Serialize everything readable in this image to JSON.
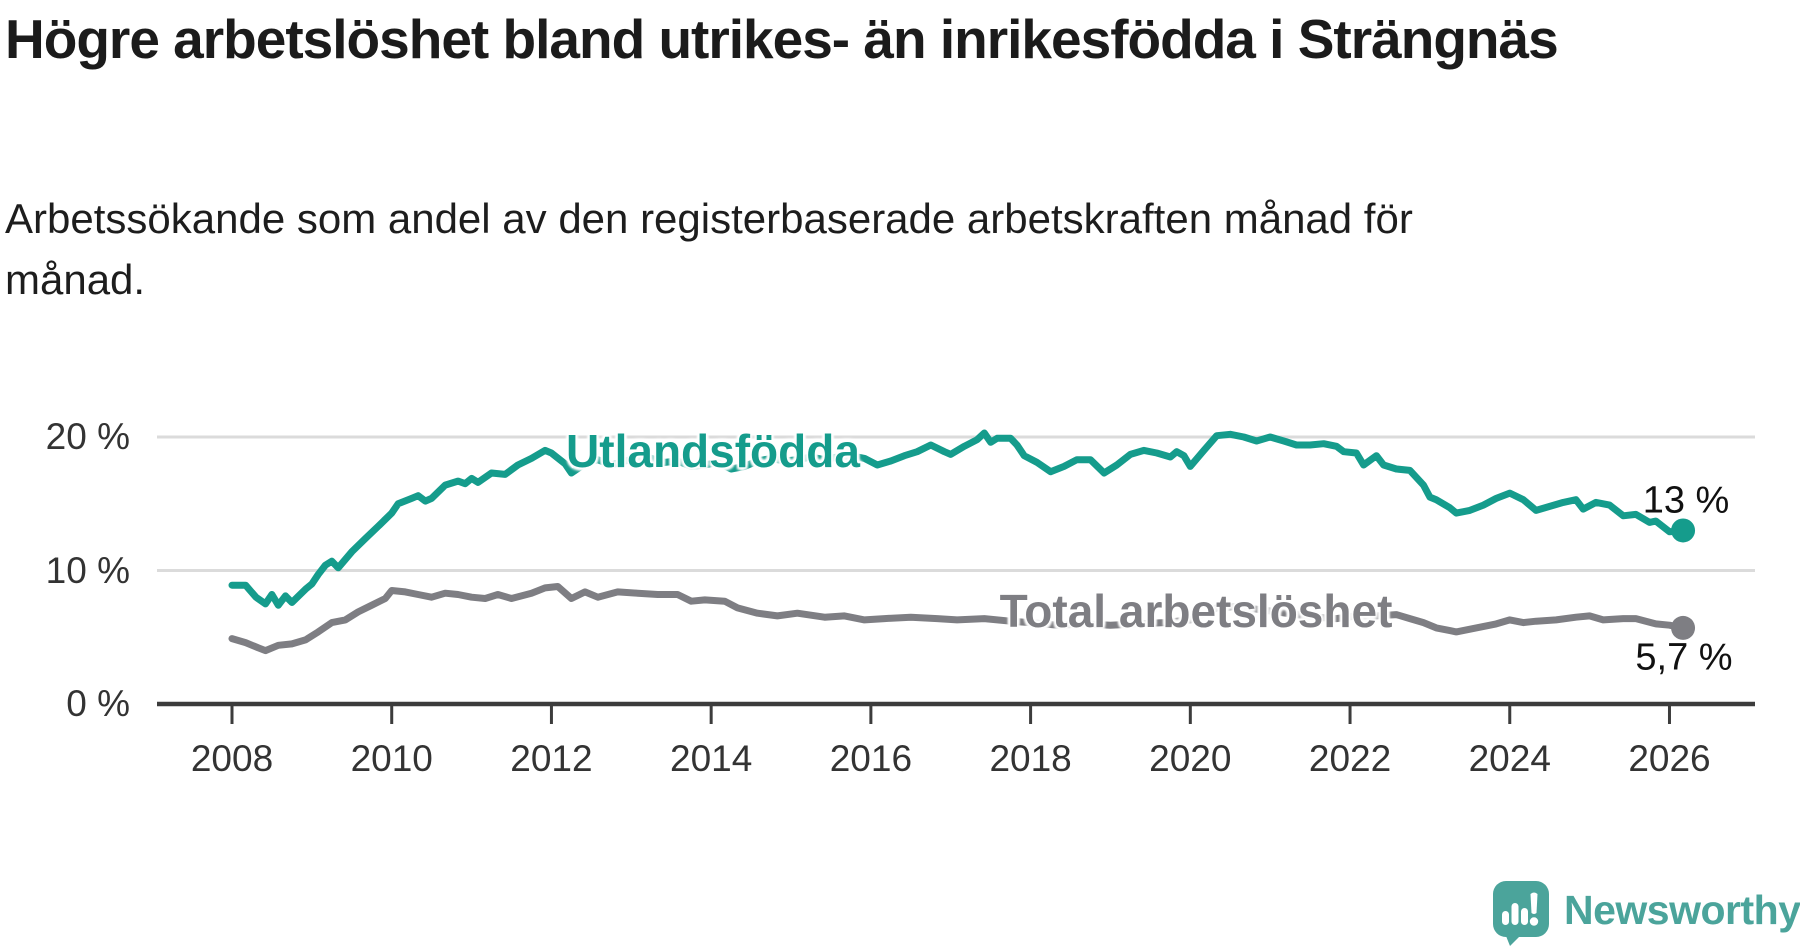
{
  "chart_data": {
    "type": "line",
    "title": "Högre arbetslöshet bland utrikes- än inrikesfödda i Strängnäs",
    "subtitle": "Arbetssökande som andel av den registerbaserade arbetskraften månad för månad.",
    "unit": "%",
    "legend": "inline-labels",
    "grid": "horizontal",
    "x_range": [
      2007.5,
      2026.9
    ],
    "y_range": [
      0,
      21.5
    ],
    "x_ticks": [
      2008,
      2010,
      2012,
      2014,
      2016,
      2018,
      2020,
      2022,
      2024,
      2026
    ],
    "y_ticks": [
      {
        "value": 0,
        "label": "0 %"
      },
      {
        "value": 10,
        "label": "10 %"
      },
      {
        "value": 20,
        "label": "20 %"
      }
    ],
    "series": [
      {
        "name": "Utlandsfödda",
        "color": "#159C8C",
        "end_label": "13 %",
        "end_value": 13.0,
        "points": [
          [
            2008.0,
            8.9
          ],
          [
            2008.17,
            8.9
          ],
          [
            2008.3,
            8.0
          ],
          [
            2008.42,
            7.5
          ],
          [
            2008.5,
            8.2
          ],
          [
            2008.58,
            7.4
          ],
          [
            2008.67,
            8.1
          ],
          [
            2008.75,
            7.6
          ],
          [
            2008.92,
            8.6
          ],
          [
            2009.0,
            9.0
          ],
          [
            2009.08,
            9.7
          ],
          [
            2009.17,
            10.4
          ],
          [
            2009.25,
            10.7
          ],
          [
            2009.33,
            10.2
          ],
          [
            2009.5,
            11.4
          ],
          [
            2009.67,
            12.4
          ],
          [
            2009.83,
            13.3
          ],
          [
            2010.0,
            14.3
          ],
          [
            2010.08,
            15.0
          ],
          [
            2010.25,
            15.4
          ],
          [
            2010.33,
            15.6
          ],
          [
            2010.42,
            15.2
          ],
          [
            2010.5,
            15.4
          ],
          [
            2010.67,
            16.4
          ],
          [
            2010.83,
            16.7
          ],
          [
            2010.92,
            16.5
          ],
          [
            2011.0,
            16.9
          ],
          [
            2011.08,
            16.6
          ],
          [
            2011.25,
            17.3
          ],
          [
            2011.42,
            17.2
          ],
          [
            2011.58,
            17.9
          ],
          [
            2011.75,
            18.4
          ],
          [
            2011.92,
            19.0
          ],
          [
            2012.0,
            18.8
          ],
          [
            2012.17,
            18.0
          ],
          [
            2012.25,
            17.3
          ],
          [
            2012.42,
            18.0
          ],
          [
            2012.58,
            18.3
          ],
          [
            2012.75,
            17.9
          ],
          [
            2012.92,
            18.2
          ],
          [
            2013.08,
            18.4
          ],
          [
            2013.25,
            18.4
          ],
          [
            2013.42,
            18.1
          ],
          [
            2013.58,
            18.2
          ],
          [
            2013.75,
            17.8
          ],
          [
            2013.92,
            17.9
          ],
          [
            2014.08,
            18.1
          ],
          [
            2014.25,
            17.6
          ],
          [
            2014.42,
            17.8
          ],
          [
            2014.58,
            18.2
          ],
          [
            2014.75,
            18.4
          ],
          [
            2014.92,
            18.2
          ],
          [
            2015.08,
            18.3
          ],
          [
            2015.25,
            18.5
          ],
          [
            2015.42,
            18.3
          ],
          [
            2015.58,
            18.5
          ],
          [
            2015.75,
            18.6
          ],
          [
            2015.92,
            18.4
          ],
          [
            2016.08,
            17.9
          ],
          [
            2016.25,
            18.2
          ],
          [
            2016.42,
            18.6
          ],
          [
            2016.58,
            18.9
          ],
          [
            2016.75,
            19.4
          ],
          [
            2016.92,
            18.9
          ],
          [
            2017.0,
            18.7
          ],
          [
            2017.17,
            19.3
          ],
          [
            2017.33,
            19.8
          ],
          [
            2017.42,
            20.3
          ],
          [
            2017.5,
            19.6
          ],
          [
            2017.58,
            19.9
          ],
          [
            2017.75,
            19.9
          ],
          [
            2017.83,
            19.4
          ],
          [
            2017.92,
            18.6
          ],
          [
            2018.08,
            18.1
          ],
          [
            2018.25,
            17.4
          ],
          [
            2018.42,
            17.8
          ],
          [
            2018.58,
            18.3
          ],
          [
            2018.75,
            18.3
          ],
          [
            2018.92,
            17.3
          ],
          [
            2019.08,
            17.9
          ],
          [
            2019.25,
            18.7
          ],
          [
            2019.42,
            19.0
          ],
          [
            2019.58,
            18.8
          ],
          [
            2019.75,
            18.5
          ],
          [
            2019.83,
            18.9
          ],
          [
            2019.92,
            18.6
          ],
          [
            2020.0,
            17.8
          ],
          [
            2020.17,
            19.0
          ],
          [
            2020.33,
            20.1
          ],
          [
            2020.5,
            20.2
          ],
          [
            2020.67,
            20.0
          ],
          [
            2020.83,
            19.7
          ],
          [
            2021.0,
            20.0
          ],
          [
            2021.17,
            19.7
          ],
          [
            2021.33,
            19.4
          ],
          [
            2021.5,
            19.4
          ],
          [
            2021.67,
            19.5
          ],
          [
            2021.83,
            19.3
          ],
          [
            2021.92,
            18.9
          ],
          [
            2022.08,
            18.8
          ],
          [
            2022.17,
            17.9
          ],
          [
            2022.33,
            18.6
          ],
          [
            2022.42,
            17.9
          ],
          [
            2022.58,
            17.6
          ],
          [
            2022.75,
            17.5
          ],
          [
            2022.92,
            16.4
          ],
          [
            2023.0,
            15.5
          ],
          [
            2023.08,
            15.3
          ],
          [
            2023.25,
            14.7
          ],
          [
            2023.33,
            14.3
          ],
          [
            2023.5,
            14.5
          ],
          [
            2023.67,
            14.9
          ],
          [
            2023.83,
            15.4
          ],
          [
            2024.0,
            15.8
          ],
          [
            2024.17,
            15.3
          ],
          [
            2024.33,
            14.5
          ],
          [
            2024.5,
            14.8
          ],
          [
            2024.67,
            15.1
          ],
          [
            2024.83,
            15.3
          ],
          [
            2024.92,
            14.6
          ],
          [
            2025.08,
            15.1
          ],
          [
            2025.25,
            14.9
          ],
          [
            2025.42,
            14.1
          ],
          [
            2025.58,
            14.2
          ],
          [
            2025.75,
            13.6
          ],
          [
            2025.83,
            13.7
          ],
          [
            2026.0,
            12.9
          ],
          [
            2026.17,
            13.0
          ]
        ]
      },
      {
        "name": "Total arbetslöshet",
        "color": "#7E7E83",
        "end_label": "5,7 %",
        "end_value": 5.7,
        "points": [
          [
            2008.0,
            4.9
          ],
          [
            2008.17,
            4.6
          ],
          [
            2008.33,
            4.2
          ],
          [
            2008.42,
            4.0
          ],
          [
            2008.58,
            4.4
          ],
          [
            2008.75,
            4.5
          ],
          [
            2008.92,
            4.8
          ],
          [
            2009.08,
            5.4
          ],
          [
            2009.25,
            6.1
          ],
          [
            2009.42,
            6.3
          ],
          [
            2009.58,
            6.9
          ],
          [
            2009.75,
            7.4
          ],
          [
            2009.92,
            7.9
          ],
          [
            2010.0,
            8.5
          ],
          [
            2010.17,
            8.4
          ],
          [
            2010.33,
            8.2
          ],
          [
            2010.5,
            8.0
          ],
          [
            2010.67,
            8.3
          ],
          [
            2010.83,
            8.2
          ],
          [
            2011.0,
            8.0
          ],
          [
            2011.17,
            7.9
          ],
          [
            2011.33,
            8.2
          ],
          [
            2011.5,
            7.9
          ],
          [
            2011.75,
            8.3
          ],
          [
            2011.92,
            8.7
          ],
          [
            2012.08,
            8.8
          ],
          [
            2012.25,
            7.9
          ],
          [
            2012.42,
            8.4
          ],
          [
            2012.58,
            8.0
          ],
          [
            2012.83,
            8.4
          ],
          [
            2013.08,
            8.3
          ],
          [
            2013.33,
            8.2
          ],
          [
            2013.58,
            8.2
          ],
          [
            2013.75,
            7.7
          ],
          [
            2013.92,
            7.8
          ],
          [
            2014.17,
            7.7
          ],
          [
            2014.33,
            7.2
          ],
          [
            2014.58,
            6.8
          ],
          [
            2014.83,
            6.6
          ],
          [
            2015.08,
            6.8
          ],
          [
            2015.42,
            6.5
          ],
          [
            2015.67,
            6.6
          ],
          [
            2015.92,
            6.3
          ],
          [
            2016.17,
            6.4
          ],
          [
            2016.5,
            6.5
          ],
          [
            2016.83,
            6.4
          ],
          [
            2017.08,
            6.3
          ],
          [
            2017.42,
            6.4
          ],
          [
            2017.75,
            6.2
          ],
          [
            2018.0,
            6.1
          ],
          [
            2018.33,
            5.9
          ],
          [
            2018.67,
            6.0
          ],
          [
            2019.0,
            5.9
          ],
          [
            2019.33,
            6.0
          ],
          [
            2019.67,
            6.1
          ],
          [
            2020.0,
            6.3
          ],
          [
            2020.33,
            7.2
          ],
          [
            2020.58,
            7.3
          ],
          [
            2020.83,
            7.1
          ],
          [
            2021.08,
            6.9
          ],
          [
            2021.33,
            6.7
          ],
          [
            2021.58,
            6.5
          ],
          [
            2021.83,
            6.4
          ],
          [
            2022.08,
            6.6
          ],
          [
            2022.33,
            6.6
          ],
          [
            2022.58,
            6.7
          ],
          [
            2022.75,
            6.4
          ],
          [
            2022.92,
            6.1
          ],
          [
            2023.08,
            5.7
          ],
          [
            2023.25,
            5.5
          ],
          [
            2023.33,
            5.4
          ],
          [
            2023.58,
            5.7
          ],
          [
            2023.83,
            6.0
          ],
          [
            2024.0,
            6.3
          ],
          [
            2024.17,
            6.1
          ],
          [
            2024.33,
            6.2
          ],
          [
            2024.58,
            6.3
          ],
          [
            2024.83,
            6.5
          ],
          [
            2025.0,
            6.6
          ],
          [
            2025.17,
            6.3
          ],
          [
            2025.42,
            6.4
          ],
          [
            2025.58,
            6.4
          ],
          [
            2025.83,
            6.0
          ],
          [
            2026.0,
            5.9
          ],
          [
            2026.17,
            5.7
          ]
        ]
      }
    ],
    "style": {
      "grid_color": "#DBDBDB",
      "axis_color": "#3C3C3C",
      "tick_text_color": "#333333",
      "value_label_color": "#111111"
    }
  },
  "footer": {
    "brand": "Newsworthy",
    "brand_color": "#4BA49B",
    "logo_icon": "speech-bubble-bar-chart-exclamation"
  }
}
